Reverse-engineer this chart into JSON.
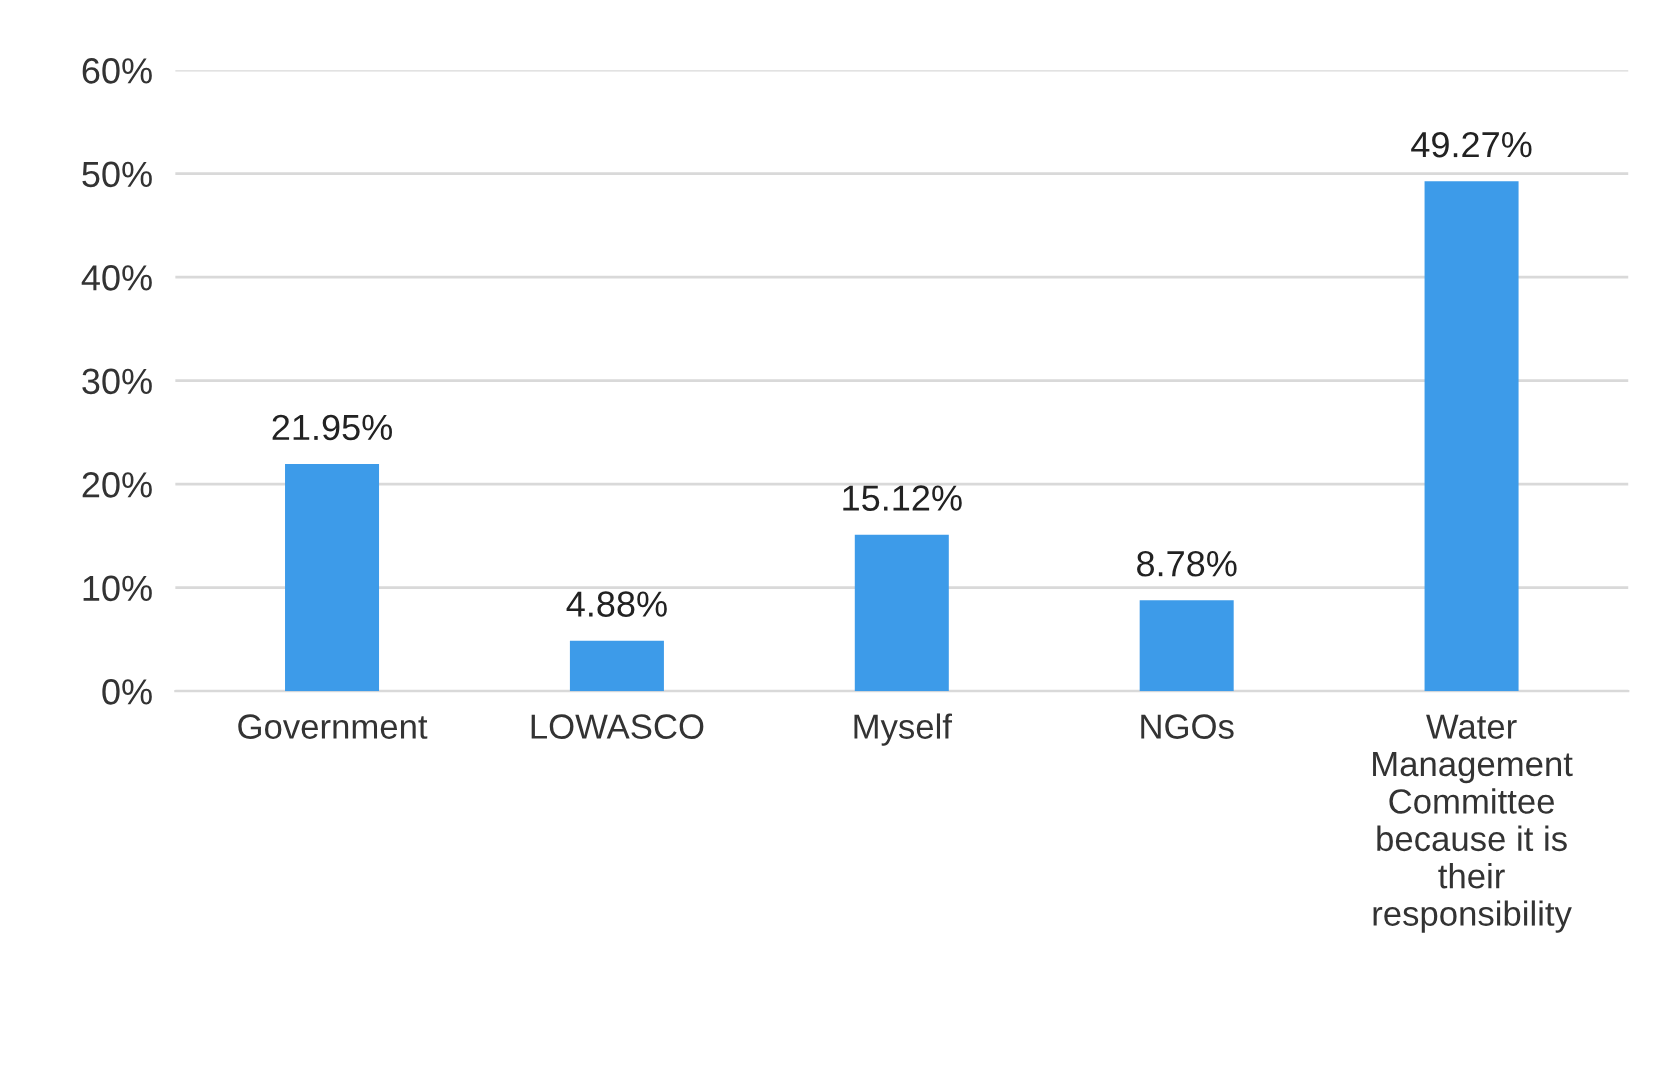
{
  "chart_data": {
    "type": "bar",
    "categories": [
      "Government",
      "LOWASCO",
      "Myself",
      "NGOs",
      "Water\nManagement\nCommittee\nbecause it is\ntheir\nresponsibility"
    ],
    "values": [
      21.95,
      4.88,
      15.12,
      8.78,
      49.27
    ],
    "value_labels": [
      "21.95%",
      "4.88%",
      "15.12%",
      "8.78%",
      "49.27%"
    ],
    "color": "#3d9be9",
    "ylim": [
      0,
      60
    ],
    "yticks": [
      {
        "value": 0,
        "label": "0%"
      },
      {
        "value": 10,
        "label": "10%"
      },
      {
        "value": 20,
        "label": "20%"
      },
      {
        "value": 30,
        "label": "30%"
      },
      {
        "value": 40,
        "label": "40%"
      },
      {
        "value": 50,
        "label": "50%"
      },
      {
        "value": 60,
        "label": "60%"
      }
    ],
    "grid": "y"
  }
}
